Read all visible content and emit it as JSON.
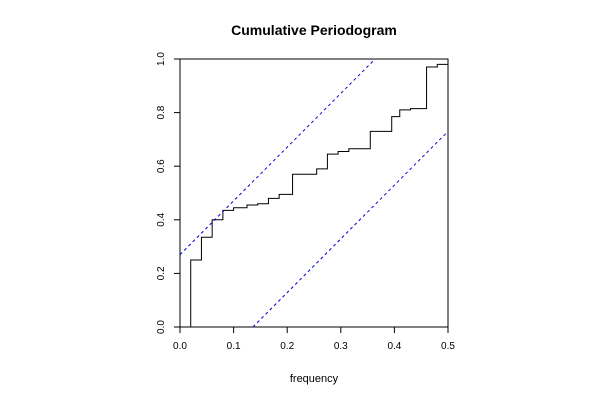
{
  "chart_data": {
    "type": "line",
    "title": "Cumulative Periodogram",
    "xlabel": "frequency",
    "ylabel": "",
    "xlim": [
      0.0,
      0.5
    ],
    "ylim": [
      0.0,
      1.0
    ],
    "xticks": [
      "0.0",
      "0.1",
      "0.2",
      "0.3",
      "0.4",
      "0.5"
    ],
    "yticks": [
      "0.0",
      "0.2",
      "0.4",
      "0.6",
      "0.8",
      "1.0"
    ],
    "grid": false,
    "series": [
      {
        "style": "step",
        "color": "#000000",
        "x": [
          0.02,
          0.04,
          0.06,
          0.08,
          0.1,
          0.125,
          0.145,
          0.165,
          0.185,
          0.21,
          0.235,
          0.255,
          0.275,
          0.295,
          0.315,
          0.335,
          0.355,
          0.395,
          0.41,
          0.43,
          0.46,
          0.48,
          0.5
        ],
        "y": [
          0.25,
          0.335,
          0.4,
          0.435,
          0.445,
          0.455,
          0.46,
          0.48,
          0.495,
          0.57,
          0.57,
          0.59,
          0.645,
          0.655,
          0.665,
          0.665,
          0.73,
          0.785,
          0.81,
          0.815,
          0.97,
          0.98,
          0.98
        ]
      },
      {
        "style": "dashed",
        "color": "#0000cc",
        "x": [
          0.0,
          0.364
        ],
        "y": [
          0.27,
          1.0
        ]
      },
      {
        "style": "dashed",
        "color": "#0000cc",
        "x": [
          0.136,
          0.5
        ],
        "y": [
          0.0,
          0.73
        ]
      }
    ]
  }
}
